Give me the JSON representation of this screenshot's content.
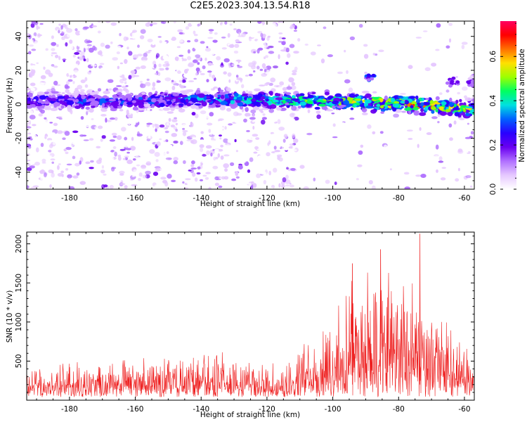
{
  "title": "C2E5.2023.304.13.54.R18",
  "colors": {
    "snr_line": "#ee1c1c",
    "axis": "#000000",
    "colormap": [
      "#ffffff",
      "#e6c8ff",
      "#b070ff",
      "#6a00f0",
      "#2a00ff",
      "#0060ff",
      "#00e0e0",
      "#00ff60",
      "#9cff00",
      "#ffe000",
      "#ff7000",
      "#ff0000",
      "#ff0060"
    ]
  },
  "chart_data": [
    {
      "type": "heatmap",
      "title": "",
      "xlabel": "Height of straight line (km)",
      "ylabel": "Frequency (Hz)",
      "xlim": [
        -193,
        -57
      ],
      "ylim": [
        -50,
        49
      ],
      "xticks": [
        -180,
        -160,
        -140,
        -120,
        -100,
        -80,
        -60
      ],
      "yticks": [
        -40,
        -20,
        0,
        20,
        40
      ],
      "colorbar": {
        "label": "Normalized spectral amplitude",
        "range": [
          0,
          0.76
        ],
        "ticks": [
          "0.0",
          "0.2",
          "0.4",
          "0.6"
        ]
      },
      "ridge": {
        "description_points_x": [
          -193,
          -160,
          -140,
          -110,
          -90,
          -75,
          -57
        ],
        "frequency_center": [
          2,
          2,
          3,
          2,
          1,
          0,
          -3
        ],
        "peak_amplitude": [
          0.25,
          0.3,
          0.35,
          0.45,
          0.55,
          0.65,
          0.5
        ]
      },
      "features": [
        {
          "x": -89,
          "frequency": 16,
          "amplitude": 0.3
        },
        {
          "x": -64,
          "frequency": 13,
          "amplitude": 0.2
        },
        {
          "x": -58,
          "frequency": 13,
          "amplitude": 0.2
        }
      ],
      "noise_region_end_x": -111
    },
    {
      "type": "line",
      "title": "",
      "xlabel": "Height of straight line (km)",
      "ylabel": "SNR (10 * v/v)",
      "xlim": [
        -193,
        -57
      ],
      "ylim": [
        0,
        2150
      ],
      "xticks": [
        -180,
        -160,
        -140,
        -120,
        -100,
        -80,
        -60
      ],
      "yticks": [
        500,
        1000,
        1500,
        2000
      ],
      "series": [
        {
          "envelope_x": [
            -193,
            -180,
            -170,
            -160,
            -150,
            -140,
            -135,
            -130,
            -120,
            -112,
            -108,
            -104,
            -100,
            -96,
            -92,
            -88,
            -84,
            -80,
            -76,
            -72,
            -68,
            -64,
            -60,
            -57
          ],
          "envelope_max": [
            470,
            520,
            560,
            650,
            600,
            700,
            650,
            550,
            480,
            620,
            850,
            1000,
            1250,
            1550,
            1750,
            1600,
            1900,
            1650,
            1700,
            1300,
            1200,
            950,
            800,
            650
          ]
        }
      ],
      "annotated_peaks": [
        {
          "x": -85.5,
          "y": 1930
        },
        {
          "x": -73.5,
          "y": 2130
        },
        {
          "x": -94,
          "y": 1750
        }
      ]
    }
  ]
}
